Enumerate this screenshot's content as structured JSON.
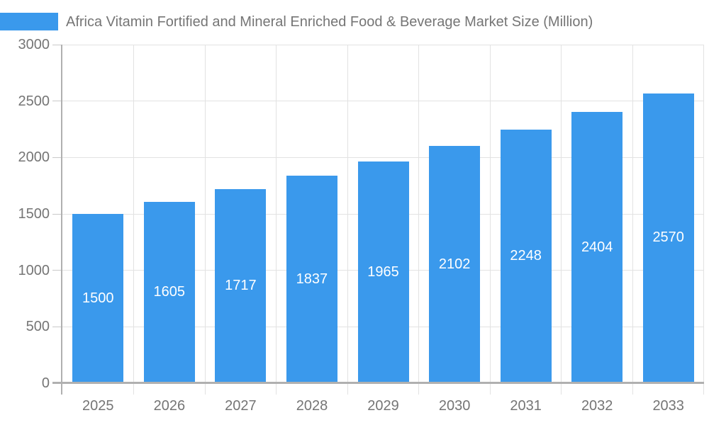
{
  "chart_data": {
    "type": "bar",
    "title": "Africa Vitamin Fortified and Mineral Enriched Food & Beverage Market Size (Million)",
    "series_name": "Africa Vitamin Fortified and Mineral Enriched Food & Beverage Market Size (Million)",
    "categories": [
      "2025",
      "2026",
      "2027",
      "2028",
      "2029",
      "2030",
      "2031",
      "2032",
      "2033"
    ],
    "values": [
      1500,
      1605,
      1717,
      1837,
      1965,
      2102,
      2248,
      2404,
      2570
    ],
    "xlabel": "",
    "ylabel": "",
    "ylim": [
      0,
      3000
    ],
    "yticks": [
      0,
      500,
      1000,
      1500,
      2000,
      2500,
      3000
    ],
    "grid": true,
    "legend_position": "top-left",
    "bar_labels_position": "inside-center",
    "colors": {
      "bar": "#3A99EC",
      "bar_label": "#FFFFFF",
      "axis_line": "#B0B0B0",
      "grid_line": "#E2E2E2",
      "tick_mark": "#C9C9C9",
      "tick_text": "#757575",
      "title_text": "#757575",
      "background": "#FFFFFF"
    }
  }
}
